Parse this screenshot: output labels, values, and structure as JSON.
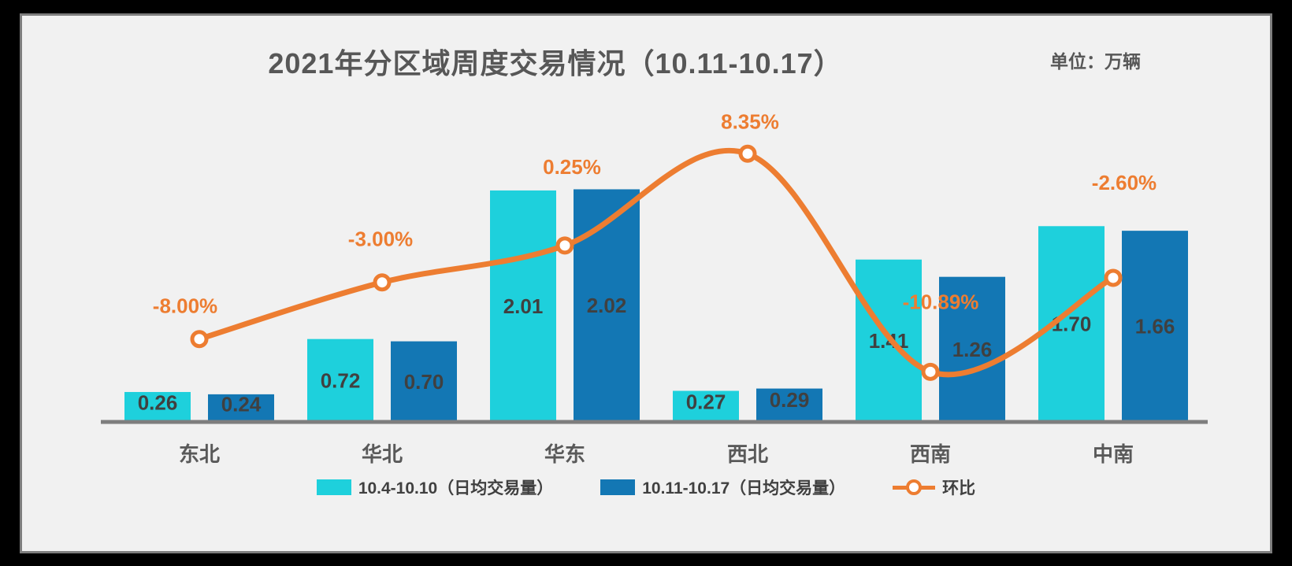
{
  "header": {
    "title": "2021年分区域周度交易情况（10.11-10.17）",
    "unit_label": "单位：万辆"
  },
  "chart_data": {
    "type": "combo",
    "categories": [
      "东北",
      "华北",
      "华东",
      "西北",
      "西南",
      "中南"
    ],
    "series": [
      {
        "name": "10.4-10.10（日均交易量）",
        "type": "bar",
        "color": "#1ED0DC",
        "values": [
          0.26,
          0.72,
          2.01,
          0.27,
          1.41,
          1.7
        ],
        "labels": [
          "0.26",
          "0.72",
          "2.01",
          "0.27",
          "1.41",
          "1.70"
        ]
      },
      {
        "name": "10.11-10.17（日均交易量）",
        "type": "bar",
        "color": "#1377B4",
        "values": [
          0.24,
          0.7,
          2.02,
          0.29,
          1.26,
          1.66
        ],
        "labels": [
          "0.24",
          "0.70",
          "2.02",
          "0.29",
          "1.26",
          "1.66"
        ]
      },
      {
        "name": "环比",
        "type": "line",
        "color": "#ED7D31",
        "marker": "open-circle",
        "values": [
          -8.0,
          -3.0,
          0.25,
          8.35,
          -10.89,
          -2.6
        ],
        "labels": [
          "-8.00%",
          "-3.00%",
          "0.25%",
          "8.35%",
          "-10.89%",
          "-2.60%"
        ]
      }
    ],
    "legend_position": "bottom",
    "grid": false,
    "value_axis": "hidden",
    "percent_axis": "hidden",
    "line_smooth": true
  },
  "colors": {
    "card_background": "#F1F1F1",
    "card_border": "#7E7E7E",
    "outer_background": "#000000",
    "axis_line": "#7E7E7E",
    "title_text": "#575757",
    "bar_label_text": "#404040",
    "category_text": "#595959"
  }
}
